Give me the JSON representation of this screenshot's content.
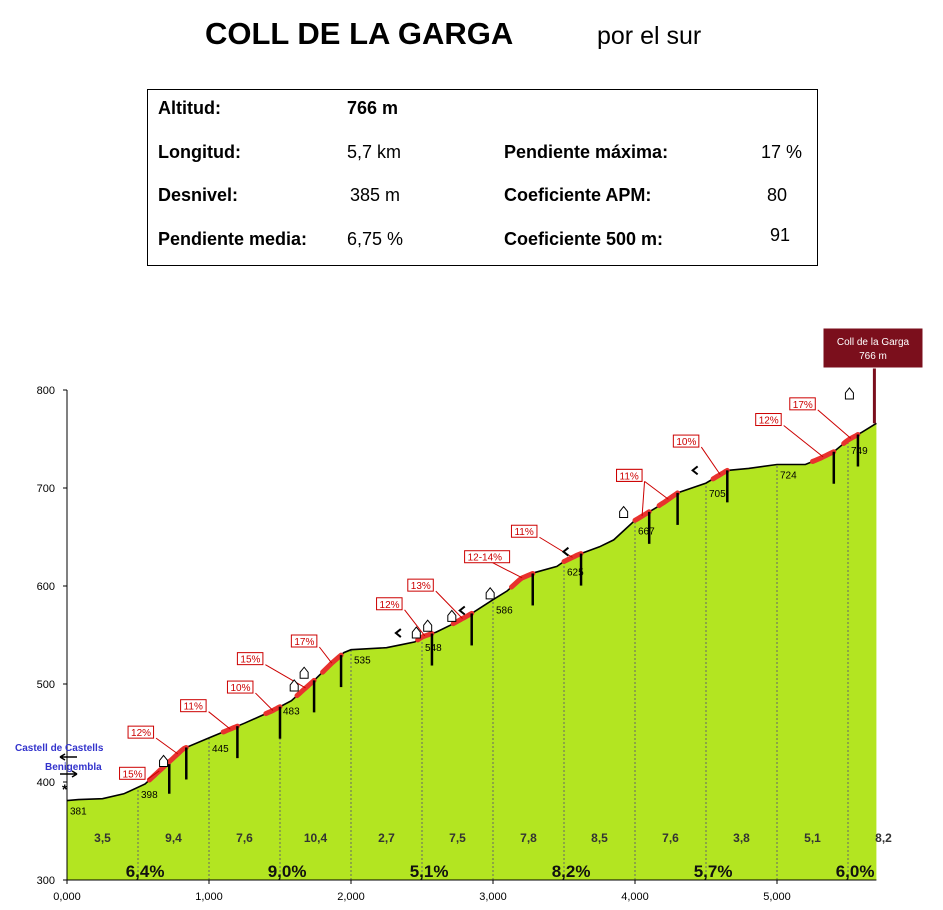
{
  "header": {
    "title": "COLL DE LA GARGA",
    "subtitle": "por el sur"
  },
  "stats": {
    "altitud": {
      "label": "Altitud:",
      "value": "766 m"
    },
    "longitud": {
      "label": "Longitud:",
      "value": "5,7 km"
    },
    "desnivel": {
      "label": "Desnivel:",
      "value": "385 m"
    },
    "pendiente_media": {
      "label": "Pendiente media:",
      "value": "6,75 %"
    },
    "pendiente_maxima": {
      "label": "Pendiente máxima:",
      "value": "17 %"
    },
    "coeficiente_apm": {
      "label": "Coeficiente APM:",
      "value": "80"
    },
    "coeficiente_500": {
      "label": "Coeficiente 500 m:",
      "value": "91"
    }
  },
  "colors": {
    "fill": "#b3e521",
    "steep": "#e8322e",
    "summit_box": "#7b0f1c",
    "start_label": "#3333cc",
    "label_border": "#cc0000"
  },
  "chart_data": {
    "type": "area",
    "xlabel": "",
    "ylabel": "",
    "xlim": [
      0,
      5.7
    ],
    "ylim": [
      300,
      800
    ],
    "x_ticks": [
      {
        "v": 0,
        "label": "0,000"
      },
      {
        "v": 1,
        "label": "1,000"
      },
      {
        "v": 2,
        "label": "2,000"
      },
      {
        "v": 3,
        "label": "3,000"
      },
      {
        "v": 4,
        "label": "4,000"
      },
      {
        "v": 5,
        "label": "5,000"
      }
    ],
    "y_ticks": [
      {
        "v": 300,
        "label": "300"
      },
      {
        "v": 400,
        "label": "400"
      },
      {
        "v": 500,
        "label": "500"
      },
      {
        "v": 600,
        "label": "600"
      },
      {
        "v": 700,
        "label": "700"
      },
      {
        "v": 800,
        "label": "800"
      }
    ],
    "profile": [
      [
        0,
        381
      ],
      [
        0.08,
        382
      ],
      [
        0.25,
        383
      ],
      [
        0.4,
        388
      ],
      [
        0.55,
        398
      ],
      [
        0.7,
        418
      ],
      [
        0.82,
        434
      ],
      [
        1.0,
        445
      ],
      [
        1.1,
        451
      ],
      [
        1.25,
        460
      ],
      [
        1.45,
        473
      ],
      [
        1.58,
        483
      ],
      [
        1.75,
        505
      ],
      [
        1.87,
        522
      ],
      [
        1.95,
        532
      ],
      [
        2.0,
        535
      ],
      [
        2.25,
        537
      ],
      [
        2.35,
        540
      ],
      [
        2.45,
        543
      ],
      [
        2.5,
        548
      ],
      [
        2.6,
        553
      ],
      [
        2.7,
        560
      ],
      [
        2.85,
        572
      ],
      [
        3.0,
        586
      ],
      [
        3.1,
        595
      ],
      [
        3.2,
        608
      ],
      [
        3.3,
        614
      ],
      [
        3.45,
        620
      ],
      [
        3.5,
        625
      ],
      [
        3.6,
        632
      ],
      [
        3.75,
        640
      ],
      [
        3.85,
        647
      ],
      [
        4.0,
        667
      ],
      [
        4.15,
        680
      ],
      [
        4.3,
        695
      ],
      [
        4.5,
        705
      ],
      [
        4.65,
        718
      ],
      [
        4.8,
        720
      ],
      [
        5.0,
        724
      ],
      [
        5.2,
        724
      ],
      [
        5.3,
        730
      ],
      [
        5.4,
        737
      ],
      [
        5.5,
        749
      ],
      [
        5.6,
        757
      ],
      [
        5.7,
        766
      ]
    ],
    "point_labels": [
      {
        "x": 0,
        "y": 381,
        "label": "381"
      },
      {
        "x": 0.5,
        "y": 398,
        "label": "398"
      },
      {
        "x": 1.0,
        "y": 445,
        "label": "445"
      },
      {
        "x": 1.5,
        "y": 483,
        "label": "483"
      },
      {
        "x": 2.0,
        "y": 535,
        "label": "535"
      },
      {
        "x": 2.5,
        "y": 548,
        "label": "548"
      },
      {
        "x": 3.0,
        "y": 586,
        "label": "586"
      },
      {
        "x": 3.5,
        "y": 625,
        "label": "625"
      },
      {
        "x": 4.0,
        "y": 667,
        "label": "667"
      },
      {
        "x": 4.5,
        "y": 705,
        "label": "705"
      },
      {
        "x": 5.0,
        "y": 724,
        "label": "724"
      },
      {
        "x": 5.5,
        "y": 749,
        "label": "749"
      }
    ],
    "segment_gradients": [
      "3,5",
      "9,4",
      "7,6",
      "10,4",
      "2,7",
      "7,5",
      "7,8",
      "8,5",
      "7,6",
      "3,8",
      "5,1",
      "8,2"
    ],
    "km_gradients": [
      "6,4%",
      "9,0%",
      "5,1%",
      "8,2%",
      "5,7%",
      "6,0%"
    ],
    "steep_sections": [
      {
        "x1": 0.58,
        "x2": 0.72,
        "label": "15%",
        "lx": 0.37,
        "ly": 415
      },
      {
        "x1": 0.72,
        "x2": 0.84,
        "label": "12%",
        "lx": 0.43,
        "ly": 457
      },
      {
        "x1": 1.1,
        "x2": 1.2,
        "label": "11%",
        "lx": 0.8,
        "ly": 484
      },
      {
        "x1": 1.4,
        "x2": 1.5,
        "label": "10%",
        "lx": 1.13,
        "ly": 503
      },
      {
        "x1": 1.62,
        "x2": 1.74,
        "label": "15%",
        "lx": 1.2,
        "ly": 532
      },
      {
        "x1": 1.8,
        "x2": 1.93,
        "label": "17%",
        "lx": 1.58,
        "ly": 550
      },
      {
        "x1": 2.47,
        "x2": 2.57,
        "label": "12%",
        "lx": 2.18,
        "ly": 588
      },
      {
        "x1": 2.72,
        "x2": 2.85,
        "label": "13%",
        "lx": 2.4,
        "ly": 607
      },
      {
        "x1": 3.13,
        "x2": 3.28,
        "label": "12-14%",
        "lx": 2.8,
        "ly": 636
      },
      {
        "x1": 3.5,
        "x2": 3.62,
        "label": "11%",
        "lx": 3.13,
        "ly": 662
      },
      {
        "x1": 4.0,
        "x2": 4.1,
        "label": "11%",
        "lx": 3.87,
        "ly": 719
      },
      {
        "x1": 4.17,
        "x2": 4.3,
        "label": "11%",
        "lx": 3.87,
        "ly": 719
      },
      {
        "x1": 4.55,
        "x2": 4.65,
        "label": "10%",
        "lx": 4.27,
        "ly": 754
      },
      {
        "x1": 5.25,
        "x2": 5.4,
        "label": "12%",
        "lx": 4.85,
        "ly": 776
      },
      {
        "x1": 5.47,
        "x2": 5.57,
        "label": "17%",
        "lx": 5.09,
        "ly": 792
      }
    ],
    "summit": {
      "name": "Coll de la Garga",
      "alt": "766 m"
    },
    "start_labels": [
      "Castell de Castells",
      "Benigembla"
    ]
  }
}
